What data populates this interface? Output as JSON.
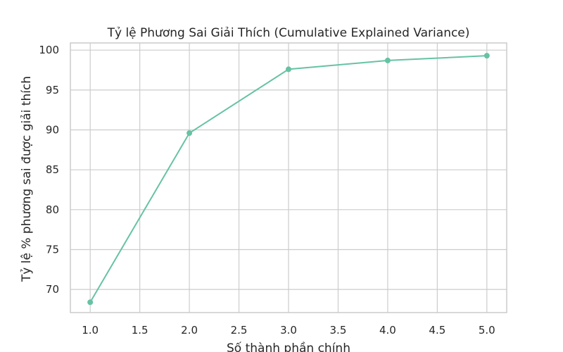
{
  "chart_data": {
    "type": "line",
    "title": "Tỷ lệ Phương Sai Giải Thích (Cumulative Explained Variance)",
    "xlabel": "Số thành phần chính",
    "ylabel": "Tỷ lệ % phương sai được giải thích",
    "xlim": [
      0.8,
      5.2
    ],
    "ylim": [
      67.1,
      100.9
    ],
    "xticks": [
      1.0,
      1.5,
      2.0,
      2.5,
      3.0,
      3.5,
      4.0,
      4.5,
      5.0
    ],
    "xtick_labels": [
      "1.0",
      "1.5",
      "2.0",
      "2.5",
      "3.0",
      "3.5",
      "4.0",
      "4.5",
      "5.0"
    ],
    "yticks": [
      70,
      75,
      80,
      85,
      90,
      95,
      100
    ],
    "ytick_labels": [
      "70",
      "75",
      "80",
      "85",
      "90",
      "95",
      "100"
    ],
    "grid": true,
    "color": "#66c2a5",
    "series": [
      {
        "x": [
          1,
          2,
          3,
          4,
          5
        ],
        "values": [
          68.4,
          89.6,
          97.6,
          98.7,
          99.3
        ]
      }
    ]
  }
}
